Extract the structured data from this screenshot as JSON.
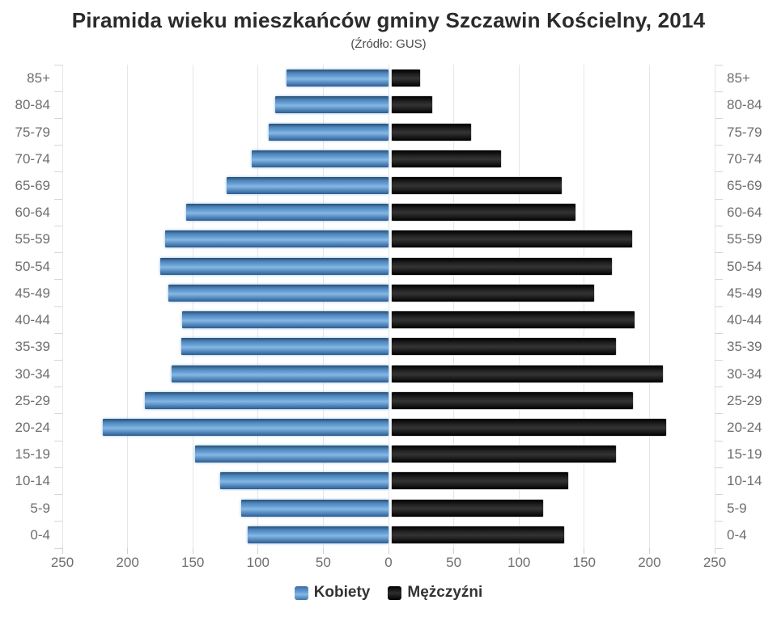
{
  "title": "Piramida wieku mieszkańców gminy Szczawin Kościelny, 2014",
  "subtitle": "(Źródło: GUS)",
  "legend": {
    "items": [
      {
        "label": "Kobiety",
        "color": "#4f86c0"
      },
      {
        "label": "Mężczyźni",
        "color": "#1a1a1a"
      }
    ]
  },
  "axis": {
    "tick_values": [
      250,
      200,
      150,
      100,
      50,
      0,
      50,
      100,
      150,
      200,
      250
    ],
    "max_per_side": 250,
    "grid": true
  },
  "chart_data": {
    "type": "bar",
    "variant": "population-pyramid",
    "title": "Piramida wieku mieszkańców gminy Szczawin Kościelny, 2014",
    "subtitle": "(Źródło: GUS)",
    "categories": [
      "85+",
      "80-84",
      "75-79",
      "70-74",
      "65-69",
      "60-64",
      "55-59",
      "50-54",
      "45-49",
      "40-44",
      "35-39",
      "30-34",
      "25-29",
      "20-24",
      "15-19",
      "10-14",
      "5-9",
      "0-4"
    ],
    "series": [
      {
        "name": "Kobiety",
        "side": "left",
        "color": "#4f86c0",
        "values": [
          78,
          87,
          92,
          105,
          124,
          155,
          171,
          175,
          169,
          158,
          159,
          166,
          187,
          219,
          148,
          129,
          113,
          108
        ]
      },
      {
        "name": "Mężczyźni",
        "side": "right",
        "color": "#1a1a1a",
        "values": [
          22,
          31,
          61,
          84,
          130,
          141,
          184,
          169,
          155,
          186,
          172,
          208,
          185,
          210,
          172,
          135,
          116,
          132
        ]
      }
    ],
    "xlim": [
      -250,
      250
    ],
    "xlabel": "",
    "ylabel": "",
    "legend_position": "bottom"
  }
}
